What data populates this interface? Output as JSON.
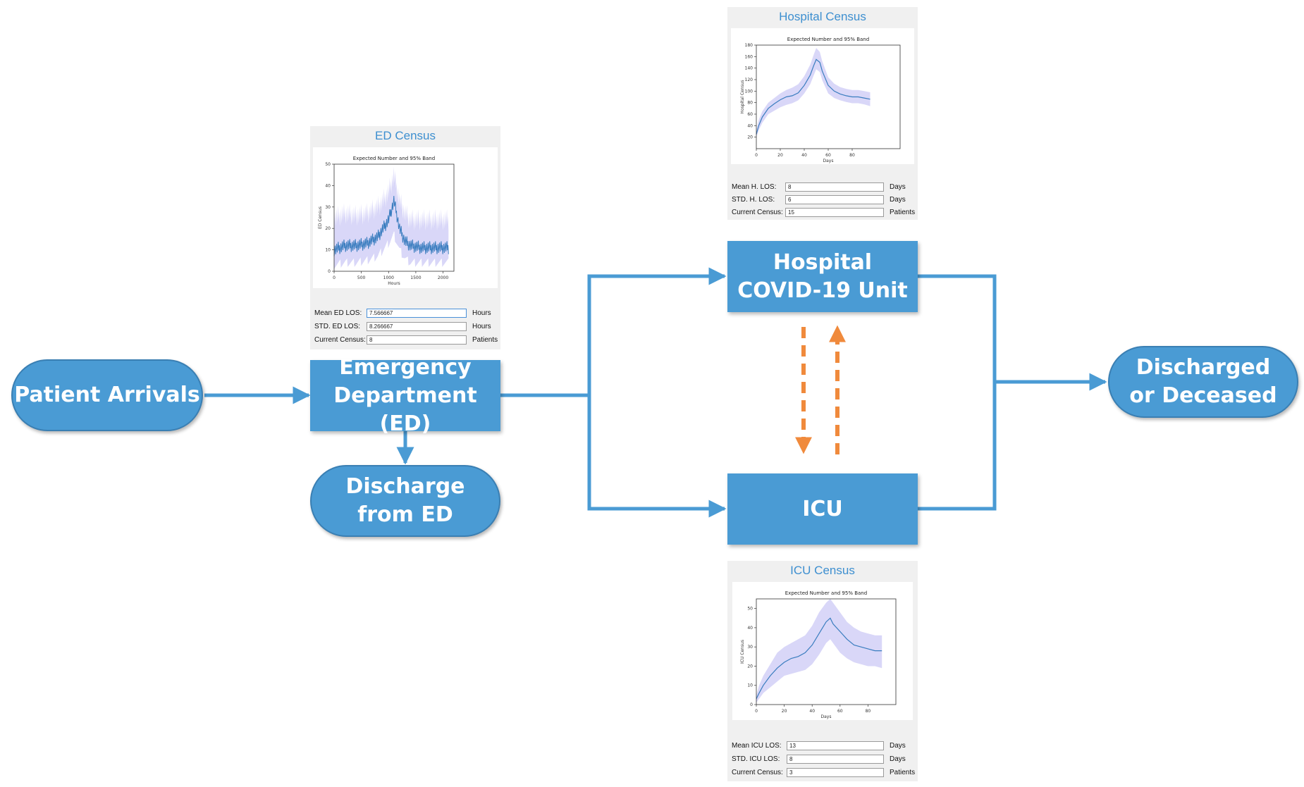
{
  "nodes": {
    "patient_arrivals": "Patient Arrivals",
    "emergency_department": "Emergency\nDepartment (ED)",
    "discharge_from_ed": "Discharge\nfrom ED",
    "hospital_unit": "Hospital\nCOVID-19 Unit",
    "icu": "ICU",
    "discharged_or_deceased": "Discharged\nor Deceased"
  },
  "colors": {
    "node_fill": "#4a9bd4",
    "flow_arrow": "#4a9bd4",
    "transfer_arrow": "#f08a3c",
    "panel_title": "#3d8fd0",
    "plot_line": "#3a7dbf",
    "plot_band": "#c9c6f5"
  },
  "panels": {
    "ed": {
      "title": "ED Census",
      "fields": [
        {
          "label": "Mean ED LOS:",
          "value": "7.566667",
          "unit": "Hours"
        },
        {
          "label": "STD. ED LOS:",
          "value": "8.266667",
          "unit": "Hours"
        },
        {
          "label": "Current Census:",
          "value": "8",
          "unit": "Patients"
        }
      ]
    },
    "hospital": {
      "title": "Hospital Census",
      "fields": [
        {
          "label": "Mean H. LOS:",
          "value": "8",
          "unit": "Days"
        },
        {
          "label": "STD. H. LOS:",
          "value": "6",
          "unit": "Days"
        },
        {
          "label": "Current Census:",
          "value": "15",
          "unit": "Patients"
        }
      ]
    },
    "icu": {
      "title": "ICU Census",
      "fields": [
        {
          "label": "Mean ICU LOS:",
          "value": "13",
          "unit": "Days"
        },
        {
          "label": "STD. ICU LOS:",
          "value": "8",
          "unit": "Days"
        },
        {
          "label": "Current Census:",
          "value": "3",
          "unit": "Patients"
        }
      ]
    }
  },
  "chart_data": [
    {
      "id": "ed",
      "type": "area",
      "title": "Expected Number and 95% Band",
      "xlabel": "Hours",
      "ylabel": "ED Census",
      "xlim": [
        0,
        2200
      ],
      "ylim": [
        0,
        50
      ],
      "xticks": [
        0,
        500,
        1000,
        1500,
        2000
      ],
      "yticks": [
        0,
        10,
        20,
        30,
        40,
        50
      ],
      "x": [
        0,
        200,
        400,
        600,
        800,
        900,
        1000,
        1100,
        1200,
        1300,
        1400,
        1600,
        1800,
        2000,
        2100
      ],
      "mean": [
        10,
        12,
        12,
        13,
        16,
        20,
        24,
        33,
        20,
        14,
        12,
        11,
        11,
        11,
        11
      ],
      "lower": [
        3,
        4,
        4,
        5,
        7,
        10,
        13,
        17,
        10,
        6,
        4,
        4,
        4,
        4,
        4
      ],
      "upper": [
        25,
        27,
        26,
        27,
        30,
        33,
        37,
        45,
        33,
        27,
        24,
        24,
        24,
        24,
        24
      ],
      "jagged": true
    },
    {
      "id": "hospital",
      "type": "area",
      "title": "Expected Number and 95% Band",
      "xlabel": "Days",
      "ylabel": "Hospital Census",
      "xlim": [
        0,
        120
      ],
      "ylim": [
        0,
        180
      ],
      "xticks": [
        0,
        20,
        40,
        60,
        80
      ],
      "yticks": [
        20,
        40,
        60,
        80,
        100,
        120,
        140,
        160,
        180
      ],
      "ytick_labels": [
        "20",
        "40",
        "60",
        "80",
        "100",
        "120",
        "140",
        "160",
        "180"
      ],
      "x": [
        0,
        2,
        5,
        10,
        15,
        20,
        25,
        30,
        35,
        40,
        45,
        48,
        50,
        53,
        55,
        60,
        65,
        70,
        75,
        80,
        85,
        90,
        95
      ],
      "mean": [
        25,
        40,
        55,
        70,
        78,
        85,
        90,
        92,
        97,
        110,
        128,
        145,
        155,
        150,
        135,
        110,
        100,
        95,
        92,
        90,
        90,
        88,
        86
      ],
      "lower": [
        20,
        32,
        45,
        60,
        66,
        72,
        76,
        79,
        84,
        96,
        112,
        128,
        138,
        133,
        119,
        96,
        88,
        84,
        81,
        79,
        79,
        77,
        74
      ],
      "upper": [
        32,
        50,
        65,
        80,
        88,
        96,
        102,
        106,
        112,
        126,
        146,
        164,
        175,
        168,
        152,
        124,
        113,
        107,
        104,
        102,
        102,
        100,
        98
      ]
    },
    {
      "id": "icu",
      "type": "area",
      "title": "Expected Number and 95% Band",
      "xlabel": "Days",
      "ylabel": "ICU Census",
      "xlim": [
        0,
        100
      ],
      "ylim": [
        0,
        55
      ],
      "xticks": [
        0,
        20,
        40,
        60,
        80
      ],
      "yticks": [
        0,
        10,
        20,
        30,
        40,
        50
      ],
      "x": [
        0,
        2,
        5,
        10,
        15,
        20,
        25,
        30,
        35,
        40,
        45,
        50,
        53,
        55,
        60,
        65,
        70,
        75,
        80,
        85,
        90
      ],
      "mean": [
        3,
        6,
        10,
        15,
        19,
        22,
        24,
        25,
        27,
        31,
        37,
        43,
        45,
        42,
        38,
        34,
        31,
        30,
        29,
        28,
        28
      ],
      "lower": [
        1,
        3,
        6,
        9,
        12,
        15,
        16,
        17,
        18,
        21,
        26,
        32,
        34,
        32,
        27,
        24,
        22,
        21,
        20,
        20,
        19
      ],
      "upper": [
        5,
        10,
        15,
        21,
        27,
        30,
        32,
        34,
        36,
        41,
        48,
        53,
        55,
        53,
        48,
        43,
        40,
        38,
        37,
        36,
        36
      ]
    }
  ]
}
